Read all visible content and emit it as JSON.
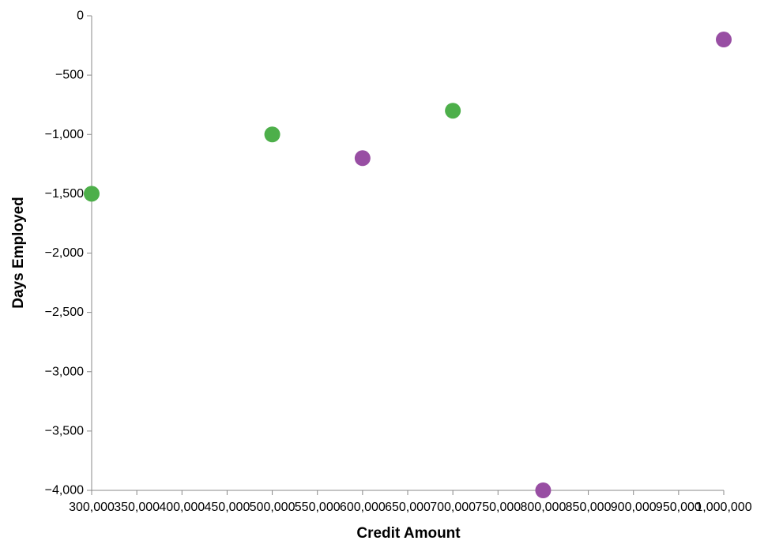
{
  "chart_data": {
    "type": "scatter",
    "xlabel": "Credit Amount",
    "ylabel": "Days Employed",
    "xlim": [
      300000,
      1000000
    ],
    "ylim": [
      -4000,
      0
    ],
    "x_ticks": [
      300000,
      350000,
      400000,
      450000,
      500000,
      550000,
      600000,
      650000,
      700000,
      750000,
      800000,
      850000,
      900000,
      950000,
      1000000
    ],
    "x_tick_labels": [
      "300,000",
      "350,000",
      "400,000",
      "450,000",
      "500,000",
      "550,000",
      "600,000",
      "650,000",
      "700,000",
      "750,000",
      "800,000",
      "850,000",
      "900,000",
      "950,000",
      "1,000,000"
    ],
    "y_ticks": [
      0,
      -500,
      -1000,
      -1500,
      -2000,
      -2500,
      -3000,
      -3500,
      -4000
    ],
    "y_tick_labels": [
      "0",
      "−500",
      "−1,000",
      "−1,500",
      "−2,000",
      "−2,500",
      "−3,000",
      "−3,500",
      "−4,000"
    ],
    "grid": false,
    "colors": {
      "green": "#4daf4a",
      "purple": "#984ea3",
      "axis": "#888888"
    },
    "points": [
      {
        "x": 300000,
        "y": -1500,
        "color": "green"
      },
      {
        "x": 500000,
        "y": -1000,
        "color": "green"
      },
      {
        "x": 600000,
        "y": -1200,
        "color": "purple"
      },
      {
        "x": 700000,
        "y": -800,
        "color": "green"
      },
      {
        "x": 800000,
        "y": -4000,
        "color": "purple"
      },
      {
        "x": 1000000,
        "y": -200,
        "color": "purple"
      }
    ]
  }
}
